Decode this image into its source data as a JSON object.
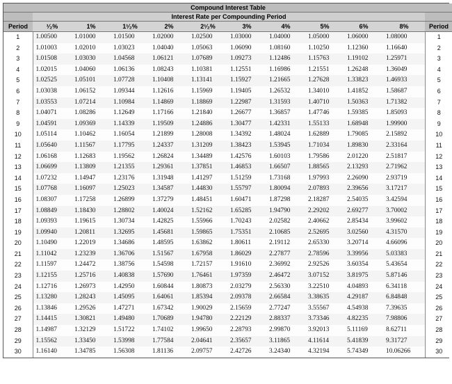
{
  "table": {
    "title": "Compound Interest Table",
    "subtitle": "Interest Rate per Compounding Period",
    "period_label": "Period",
    "rate_headers": [
      "¹⁄₂%",
      "1%",
      "1¹⁄₂%",
      "2%",
      "2¹⁄₂%",
      "3%",
      "4%",
      "5%",
      "6%",
      "8%"
    ],
    "rows": [
      {
        "period": "1",
        "values": [
          "1.00500",
          "1.01000",
          "1.01500",
          "1.02000",
          "1.02500",
          "1.03000",
          "1.04000",
          "1.05000",
          "1.06000",
          "1.08000"
        ]
      },
      {
        "period": "2",
        "values": [
          "1.01003",
          "1.02010",
          "1.03023",
          "1.04040",
          "1.05063",
          "1.06090",
          "1.08160",
          "1.10250",
          "1.12360",
          "1.16640"
        ]
      },
      {
        "period": "3",
        "values": [
          "1.01508",
          "1.03030",
          "1.04568",
          "1.06121",
          "1.07689",
          "1.09273",
          "1.12486",
          "1.15763",
          "1.19102",
          "1.25971"
        ]
      },
      {
        "period": "4",
        "values": [
          "1.02015",
          "1.04060",
          "1.06136",
          "1.08243",
          "1.10381",
          "1.12551",
          "1.16986",
          "1.21551",
          "1.26248",
          "1.36049"
        ]
      },
      {
        "period": "5",
        "values": [
          "1.02525",
          "1.05101",
          "1.07728",
          "1.10408",
          "1.13141",
          "1.15927",
          "1.21665",
          "1.27628",
          "1.33823",
          "1.46933"
        ]
      },
      {
        "period": "6",
        "values": [
          "1.03038",
          "1.06152",
          "1.09344",
          "1.12616",
          "1.15969",
          "1.19405",
          "1.26532",
          "1.34010",
          "1.41852",
          "1.58687"
        ]
      },
      {
        "period": "7",
        "values": [
          "1.03553",
          "1.07214",
          "1.10984",
          "1.14869",
          "1.18869",
          "1.22987",
          "1.31593",
          "1.40710",
          "1.50363",
          "1.71382"
        ]
      },
      {
        "period": "8",
        "values": [
          "1.04071",
          "1.08286",
          "1.12649",
          "1.17166",
          "1.21840",
          "1.26677",
          "1.36857",
          "1.47746",
          "1.59385",
          "1.85093"
        ]
      },
      {
        "period": "9",
        "values": [
          "1.04591",
          "1.09369",
          "1.14339",
          "1.19509",
          "1.24886",
          "1.30477",
          "1.42331",
          "1.55133",
          "1.68948",
          "1.99900"
        ]
      },
      {
        "period": "10",
        "values": [
          "1.05114",
          "1.10462",
          "1.16054",
          "1.21899",
          "1.28008",
          "1.34392",
          "1.48024",
          "1.62889",
          "1.79085",
          "2.15892"
        ]
      },
      {
        "period": "11",
        "values": [
          "1.05640",
          "1.11567",
          "1.17795",
          "1.24337",
          "1.31209",
          "1.38423",
          "1.53945",
          "1.71034",
          "1.89830",
          "2.33164"
        ]
      },
      {
        "period": "12",
        "values": [
          "1.06168",
          "1.12683",
          "1.19562",
          "1.26824",
          "1.34489",
          "1.42576",
          "1.60103",
          "1.79586",
          "2.01220",
          "2.51817"
        ]
      },
      {
        "period": "13",
        "values": [
          "1.06699",
          "1.13809",
          "1.21355",
          "1.29361",
          "1.37851",
          "1.46853",
          "1.66507",
          "1.88565",
          "2.13293",
          "2.71962"
        ]
      },
      {
        "period": "14",
        "values": [
          "1.07232",
          "1.14947",
          "1.23176",
          "1.31948",
          "1.41297",
          "1.51259",
          "1.73168",
          "1.97993",
          "2.26090",
          "2.93719"
        ]
      },
      {
        "period": "15",
        "values": [
          "1.07768",
          "1.16097",
          "1.25023",
          "1.34587",
          "1.44830",
          "1.55797",
          "1.80094",
          "2.07893",
          "2.39656",
          "3.17217"
        ]
      },
      {
        "period": "16",
        "values": [
          "1.08307",
          "1.17258",
          "1.26899",
          "1.37279",
          "1.48451",
          "1.60471",
          "1.87298",
          "2.18287",
          "2.54035",
          "3.42594"
        ]
      },
      {
        "period": "17",
        "values": [
          "1.08849",
          "1.18430",
          "1.28802",
          "1.40024",
          "1.52162",
          "1.65285",
          "1.94790",
          "2.29202",
          "2.69277",
          "3.70002"
        ]
      },
      {
        "period": "18",
        "values": [
          "1.09393",
          "1.19615",
          "1.30734",
          "1.42825",
          "1.55966",
          "1.70243",
          "2.02582",
          "2.40662",
          "2.85434",
          "3.99602"
        ]
      },
      {
        "period": "19",
        "values": [
          "1.09940",
          "1.20811",
          "1.32695",
          "1.45681",
          "1.59865",
          "1.75351",
          "2.10685",
          "2.52695",
          "3.02560",
          "4.31570"
        ]
      },
      {
        "period": "20",
        "values": [
          "1.10490",
          "1.22019",
          "1.34686",
          "1.48595",
          "1.63862",
          "1.80611",
          "2.19112",
          "2.65330",
          "3.20714",
          "4.66096"
        ]
      },
      {
        "period": "21",
        "values": [
          "1.11042",
          "1.23239",
          "1.36706",
          "1.51567",
          "1.67958",
          "1.86029",
          "2.27877",
          "2.78596",
          "3.39956",
          "5.03383"
        ]
      },
      {
        "period": "22",
        "values": [
          "1.11597",
          "1.24472",
          "1.38756",
          "1.54598",
          "1.72157",
          "1.91610",
          "2.36992",
          "2.92526",
          "3.60354",
          "5.43654"
        ]
      },
      {
        "period": "23",
        "values": [
          "1.12155",
          "1.25716",
          "1.40838",
          "1.57690",
          "1.76461",
          "1.97359",
          "2.46472",
          "3.07152",
          "3.81975",
          "5.87146"
        ]
      },
      {
        "period": "24",
        "values": [
          "1.12716",
          "1.26973",
          "1.42950",
          "1.60844",
          "1.80873",
          "2.03279",
          "2.56330",
          "3.22510",
          "4.04893",
          "6.34118"
        ]
      },
      {
        "period": "25",
        "values": [
          "1.13280",
          "1.28243",
          "1.45095",
          "1.64061",
          "1.85394",
          "2.09378",
          "2.66584",
          "3.38635",
          "4.29187",
          "6.84848"
        ]
      },
      {
        "period": "26",
        "values": [
          "1.13846",
          "1.29526",
          "1.47271",
          "1.67342",
          "1.90029",
          "2.15659",
          "2.77247",
          "3.55567",
          "4.54938",
          "7.39635"
        ]
      },
      {
        "period": "27",
        "values": [
          "1.14415",
          "1.30821",
          "1.49480",
          "1.70689",
          "1.94780",
          "2.22129",
          "2.88337",
          "3.73346",
          "4.82235",
          "7.98806"
        ]
      },
      {
        "period": "28",
        "values": [
          "1.14987",
          "1.32129",
          "1.51722",
          "1.74102",
          "1.99650",
          "2.28793",
          "2.99870",
          "3.92013",
          "5.11169",
          "8.62711"
        ]
      },
      {
        "period": "29",
        "values": [
          "1.15562",
          "1.33450",
          "1.53998",
          "1.77584",
          "2.04641",
          "2.35657",
          "3.11865",
          "4.11614",
          "5.41839",
          "9.31727"
        ]
      },
      {
        "period": "30",
        "values": [
          "1.16140",
          "1.34785",
          "1.56308",
          "1.81136",
          "2.09757",
          "2.42726",
          "3.24340",
          "4.32194",
          "5.74349",
          "10.06266"
        ]
      }
    ]
  }
}
